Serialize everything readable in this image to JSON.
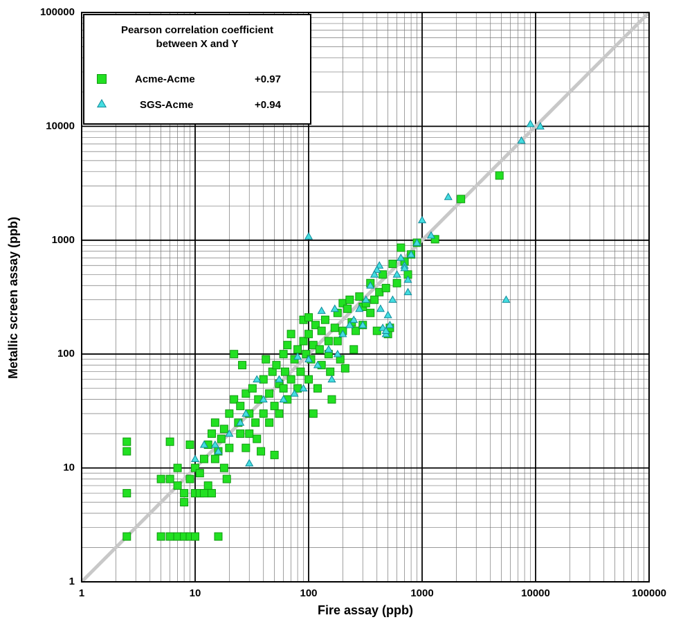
{
  "chart_data": {
    "type": "scatter",
    "xlabel": "Fire assay (ppb)",
    "ylabel": "Metallic screen assay (ppb)",
    "xscale": "log",
    "yscale": "log",
    "xlim": [
      1,
      100000
    ],
    "ylim": [
      1,
      100000
    ],
    "xticks": [
      1,
      10,
      100,
      1000,
      10000,
      100000
    ],
    "yticks": [
      1,
      10,
      100,
      1000,
      10000,
      100000
    ],
    "xminorticks": [
      2,
      3,
      4,
      5,
      6,
      7,
      8,
      9,
      20,
      30,
      40,
      50,
      60,
      70,
      80,
      90,
      200,
      300,
      400,
      500,
      600,
      700,
      800,
      900,
      2000,
      3000,
      4000,
      5000,
      6000,
      7000,
      8000,
      9000,
      20000,
      30000,
      40000,
      50000,
      60000,
      70000,
      80000,
      90000
    ],
    "yminorticks": [
      2,
      3,
      4,
      5,
      6,
      7,
      8,
      9,
      20,
      30,
      40,
      50,
      60,
      70,
      80,
      90,
      200,
      300,
      400,
      500,
      600,
      700,
      800,
      900,
      2000,
      3000,
      4000,
      5000,
      6000,
      7000,
      8000,
      9000,
      20000,
      30000,
      40000,
      50000,
      60000,
      70000,
      80000,
      90000
    ],
    "grid": true,
    "legend": "upper left",
    "legend_title": [
      "Pearson correlation coefficient",
      "between X and Y"
    ],
    "series": [
      {
        "name": "Acme-Acme",
        "correlation": "+0.97",
        "marker": "square",
        "color": "#22e022",
        "x": [
          2.5,
          2.5,
          2.5,
          2.5,
          5,
          6,
          7,
          8,
          9,
          10,
          16,
          6,
          5,
          6,
          7,
          7,
          8,
          8,
          9,
          9,
          10,
          11,
          12,
          13,
          14,
          10,
          11,
          12,
          13,
          14,
          15,
          15,
          16,
          17,
          18,
          18,
          19,
          20,
          20,
          22,
          22,
          24,
          25,
          25,
          26,
          28,
          28,
          30,
          30,
          32,
          34,
          35,
          36,
          38,
          40,
          40,
          42,
          45,
          45,
          48,
          50,
          50,
          52,
          55,
          55,
          60,
          60,
          62,
          65,
          65,
          70,
          70,
          75,
          80,
          80,
          85,
          90,
          90,
          95,
          100,
          100,
          100,
          105,
          110,
          110,
          115,
          120,
          125,
          130,
          130,
          140,
          150,
          150,
          155,
          160,
          170,
          180,
          180,
          190,
          200,
          200,
          210,
          220,
          230,
          240,
          250,
          260,
          280,
          300,
          300,
          320,
          350,
          350,
          380,
          400,
          420,
          450,
          480,
          500,
          520,
          550,
          600,
          650,
          700,
          750,
          800,
          900,
          1300,
          2200,
          4800
        ],
        "values": [
          17,
          14,
          6,
          2.5,
          2.5,
          2.5,
          2.5,
          2.5,
          2.5,
          2.5,
          2.5,
          17,
          8,
          8,
          10,
          7,
          6,
          5,
          8,
          16,
          6,
          6,
          6,
          7,
          6,
          10,
          9,
          12,
          16,
          20,
          25,
          12,
          14,
          18,
          10,
          22,
          8,
          30,
          15,
          100,
          40,
          25,
          20,
          35,
          80,
          15,
          45,
          30,
          20,
          50,
          25,
          18,
          40,
          14,
          30,
          60,
          90,
          45,
          25,
          70,
          13,
          35,
          80,
          55,
          30,
          100,
          50,
          70,
          120,
          40,
          60,
          150,
          90,
          110,
          50,
          70,
          130,
          200,
          100,
          150,
          60,
          210,
          90,
          120,
          30,
          180,
          50,
          110,
          160,
          80,
          200,
          130,
          100,
          70,
          40,
          170,
          230,
          130,
          90,
          280,
          160,
          75,
          250,
          300,
          190,
          110,
          160,
          320,
          260,
          180,
          280,
          420,
          230,
          300,
          160,
          350,
          500,
          380,
          150,
          170,
          620,
          420,
          860,
          650,
          500,
          750,
          950,
          1020,
          2300,
          3700
        ]
      },
      {
        "name": "SGS-Acme",
        "correlation": "+0.94",
        "marker": "triangle",
        "color": "#44dde0",
        "x": [
          100,
          5500,
          9000,
          11000,
          7500,
          1700,
          1000,
          1200,
          900,
          800,
          750,
          750,
          700,
          650,
          600,
          500,
          480,
          450,
          420,
          400,
          380,
          350,
          320,
          300,
          280,
          250,
          230,
          200,
          180,
          170,
          160,
          150,
          130,
          120,
          100,
          90,
          80,
          75,
          60,
          55,
          40,
          35,
          30,
          28,
          25,
          20,
          16,
          15,
          12,
          10,
          700,
          550,
          520,
          480,
          430
        ],
        "values": [
          1080,
          300,
          10500,
          10000,
          7500,
          2400,
          1500,
          1100,
          950,
          750,
          450,
          350,
          600,
          700,
          500,
          220,
          150,
          170,
          600,
          550,
          500,
          400,
          300,
          180,
          250,
          200,
          180,
          150,
          100,
          250,
          60,
          110,
          240,
          80,
          90,
          50,
          95,
          45,
          40,
          60,
          40,
          60,
          11,
          30,
          25,
          20,
          14,
          16,
          16,
          12,
          570,
          300,
          180,
          160,
          250
        ]
      }
    ]
  }
}
